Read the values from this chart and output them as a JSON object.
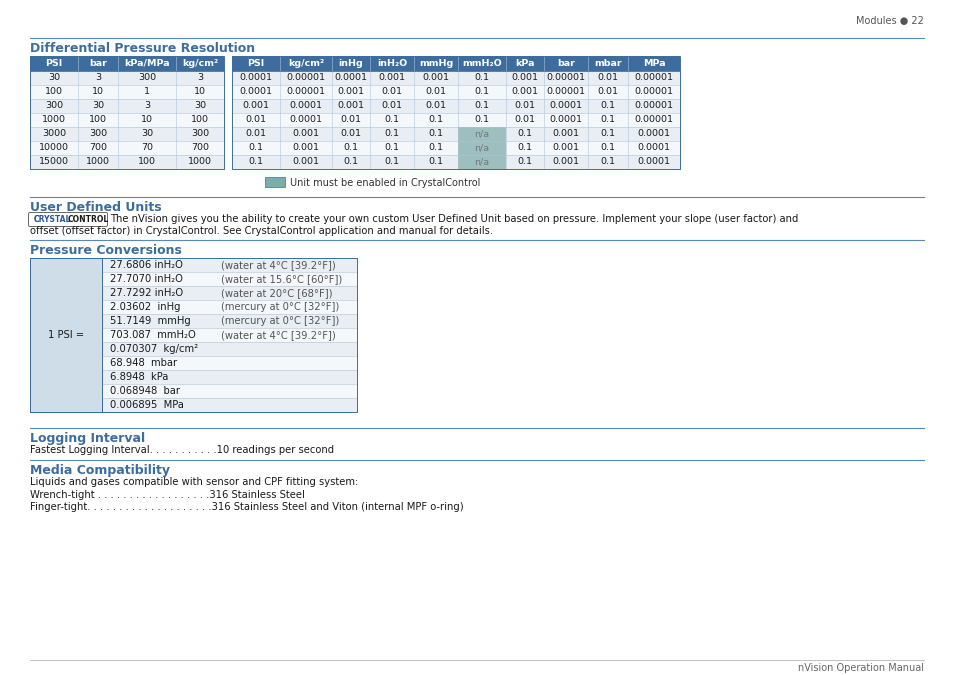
{
  "page_header": "Modules ● 22",
  "footer": "nVision Operation Manual",
  "section1_title": "Differential Pressure Resolution",
  "table1_left_headers": [
    "PSI",
    "bar",
    "kPa/MPa",
    "kg/cm²"
  ],
  "table1_left_rows": [
    [
      "30",
      "3",
      "300",
      "3"
    ],
    [
      "100",
      "10",
      "1",
      "10"
    ],
    [
      "300",
      "30",
      "3",
      "30"
    ],
    [
      "1000",
      "100",
      "10",
      "100"
    ],
    [
      "3000",
      "300",
      "30",
      "300"
    ],
    [
      "10000",
      "700",
      "70",
      "700"
    ],
    [
      "15000",
      "1000",
      "100",
      "1000"
    ]
  ],
  "table1_right_headers": [
    "PSI",
    "kg/cm²",
    "inHg",
    "inH₂O",
    "mmHg",
    "mmH₂O",
    "kPa",
    "bar",
    "mbar",
    "MPa"
  ],
  "table1_right_rows": [
    [
      "0.0001",
      "0.00001",
      "0.0001",
      "0.001",
      "0.001",
      "0.1",
      "0.001",
      "0.00001",
      "0.01",
      "0.00001"
    ],
    [
      "0.0001",
      "0.00001",
      "0.001",
      "0.01",
      "0.01",
      "0.1",
      "0.001",
      "0.00001",
      "0.01",
      "0.00001"
    ],
    [
      "0.001",
      "0.0001",
      "0.001",
      "0.01",
      "0.01",
      "0.1",
      "0.01",
      "0.0001",
      "0.1",
      "0.00001"
    ],
    [
      "0.01",
      "0.0001",
      "0.01",
      "0.1",
      "0.1",
      "0.1",
      "0.01",
      "0.0001",
      "0.1",
      "0.00001"
    ],
    [
      "0.01",
      "0.001",
      "0.01",
      "0.1",
      "0.1",
      "n/a",
      "0.1",
      "0.001",
      "0.1",
      "0.0001"
    ],
    [
      "0.1",
      "0.001",
      "0.1",
      "0.1",
      "0.1",
      "n/a",
      "0.1",
      "0.001",
      "0.1",
      "0.0001"
    ],
    [
      "0.1",
      "0.001",
      "0.1",
      "0.1",
      "0.1",
      "n/a",
      "0.1",
      "0.001",
      "0.1",
      "0.0001"
    ]
  ],
  "na_color": "#9dbfbf",
  "header_bg_color": "#3d6d9e",
  "header_text_color": "#ffffff",
  "row_bg_alt": "#e8eef4",
  "row_bg_normal": "#f5f8fb",
  "table_border_color": "#3d6d9e",
  "cell_line_color": "#b0c4d8",
  "legend_box_color": "#7aadad",
  "legend_text": "Unit must be enabled in CrystalControl",
  "section2_title": "User Defined Units",
  "section2_text1": "The nVision gives you the ability to create your own custom User Defined Unit based on pressure. Implement your slope (user factor) and",
  "section2_text2": "offset (offset factor) in CrystalControl. See CrystalControl application and manual for details.",
  "section3_title": "Pressure Conversions",
  "pressure_label": "1 PSI =",
  "pressure_rows": [
    [
      "27.6806 inH₂O",
      "(water at 4°C [39.2°F])"
    ],
    [
      "27.7070 inH₂O",
      "(water at 15.6°C [60°F])"
    ],
    [
      "27.7292 inH₂O",
      "(water at 20°C [68°F])"
    ],
    [
      "2.03602  inHg",
      "(mercury at 0°C [32°F])"
    ],
    [
      "51.7149  mmHg",
      "(mercury at 0°C [32°F])"
    ],
    [
      "703.087  mmH₂O",
      "(water at 4°C [39.2°F])"
    ],
    [
      "0.070307  kg/cm²",
      ""
    ],
    [
      "68.948  mbar",
      ""
    ],
    [
      "6.8948  kPa",
      ""
    ],
    [
      "0.068948  bar",
      ""
    ],
    [
      "0.006895  MPa",
      ""
    ]
  ],
  "section4_title": "Logging Interval",
  "section4_text": "Fastest Logging Interval. . . . . . . . . . .10 readings per second",
  "section5_title": "Media Compatibility",
  "section5_text": "Liquids and gases compatible with sensor and CPF fitting system:",
  "section5_row1": "Wrench-tight . . . . . . . . . . . . . . . . . .316 Stainless Steel",
  "section5_row2": "Finger-tight. . . . . . . . . . . . . . . . . . . .316 Stainless Steel and Viton (internal MPF o-ring)",
  "title_color": "#3d6d9e",
  "line_color": "#3d6d9e",
  "accent_line_color": "#5588bb",
  "text_color": "#1a1a1a",
  "body_font_size": 7.2,
  "title_font_size": 9.0,
  "small_font_size": 6.8
}
